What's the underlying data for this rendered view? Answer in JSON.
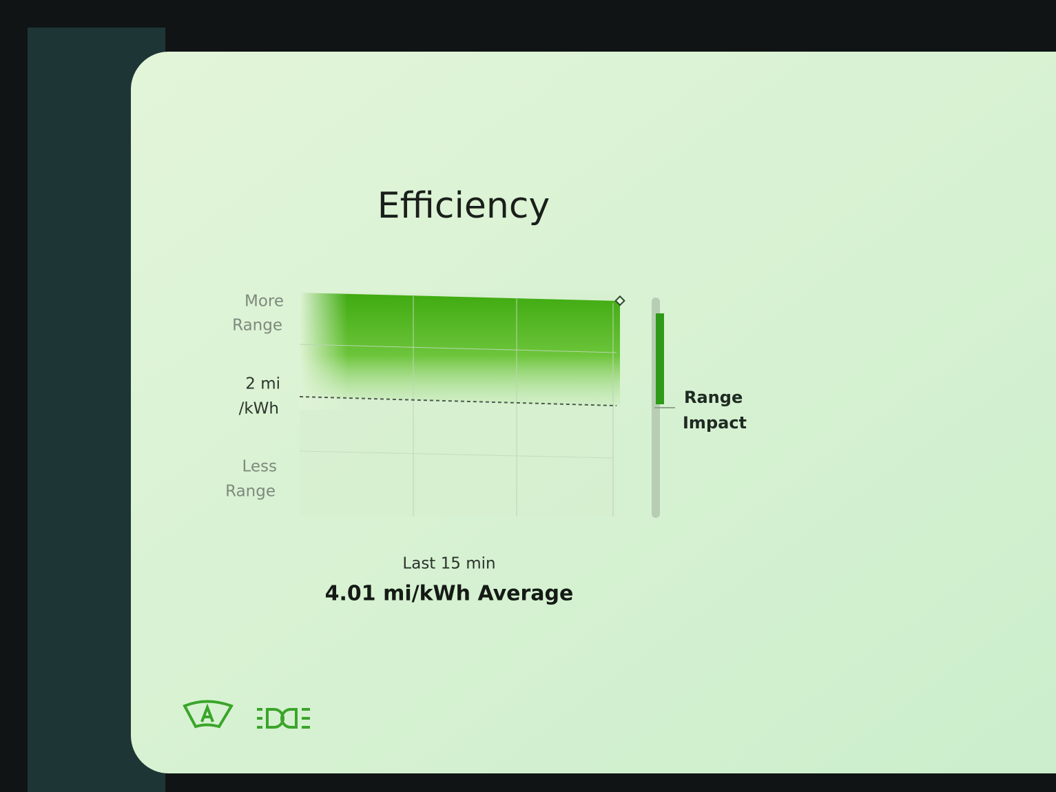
{
  "screen": {
    "title": "Efficiency",
    "y_labels": [
      [
        "More",
        "Range"
      ],
      [
        "2 mi",
        "/kWh"
      ],
      [
        "Less",
        "Range"
      ]
    ],
    "side_label": [
      "Range",
      "Impact"
    ],
    "footer": {
      "period": "Last 15 min",
      "average": "4.01 mi/kWh Average"
    }
  }
}
